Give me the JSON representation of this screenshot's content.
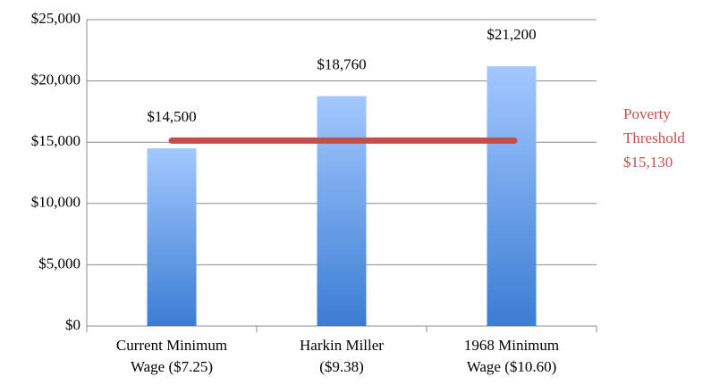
{
  "chart_data": {
    "type": "bar",
    "categories": [
      "Current Minimum Wage ($7.25)",
      "Harkin Miller ($9.38)",
      "1968 Minimum Wage ($10.60)"
    ],
    "values": [
      14500,
      18760,
      21200
    ],
    "value_labels": [
      "$14,500",
      "$18,760",
      "$21,200"
    ],
    "color": "#4f8fdc",
    "ylim": [
      0,
      25000
    ],
    "yticks": [
      {
        "value": 0,
        "label": "$0"
      },
      {
        "value": 5000,
        "label": "$5,000"
      },
      {
        "value": 10000,
        "label": "$10,000"
      },
      {
        "value": 15000,
        "label": "$15,000"
      },
      {
        "value": 20000,
        "label": "$20,000"
      },
      {
        "value": 25000,
        "label": "$25,000"
      }
    ],
    "grid": true,
    "threshold": {
      "name": "Poverty Threshold",
      "value": 15130,
      "label": "$15,130",
      "color": "#c0504d"
    }
  }
}
